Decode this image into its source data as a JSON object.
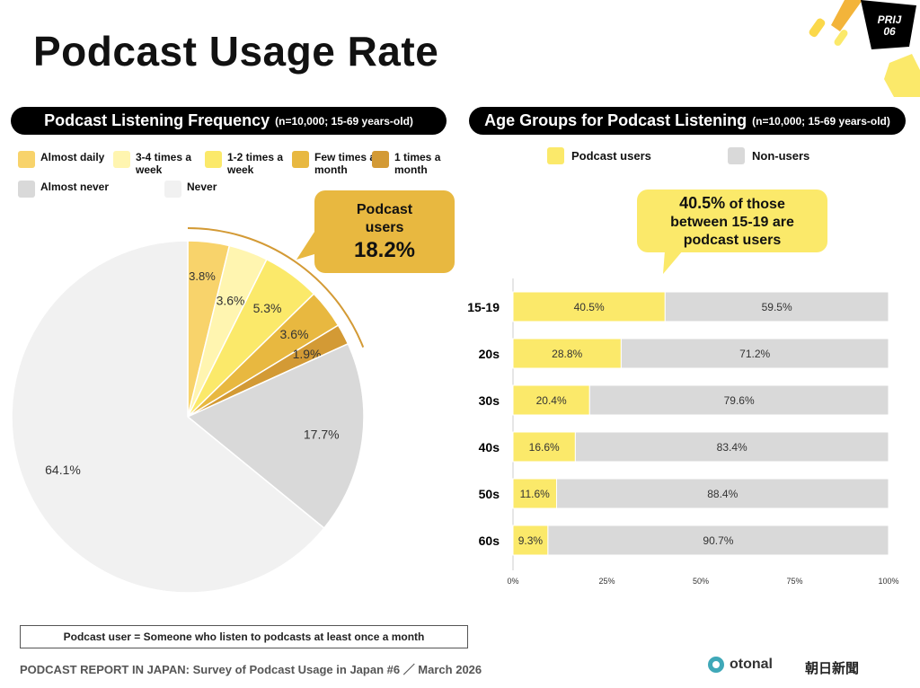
{
  "title": "Podcast Usage Rate",
  "badge": {
    "line1": "PRIJ",
    "line2": "06"
  },
  "left_panel": {
    "title": "Podcast Listening Frequency",
    "subtitle": "(n=10,000; 15-69 years-old)"
  },
  "right_panel": {
    "title": "Age Groups for Podcast Listening",
    "subtitle": "(n=10,000; 15-69 years-old)"
  },
  "callout_left": {
    "line1": "Podcast",
    "line2": "users",
    "value": "18.2%"
  },
  "callout_right": {
    "highlight": "40.5%",
    "line1": " of those",
    "line2": "between 15-19 are",
    "line3": "podcast users"
  },
  "definition": "Podcast user = Someone who listen to podcasts at least once a month",
  "footer": "PODCAST REPORT IN JAPAN: Survey of Podcast Usage in Japan #6 ／ March 2026",
  "logos": {
    "otonal": "otonal",
    "asahi": "朝日新聞"
  },
  "chart_data": [
    {
      "type": "pie",
      "start": "top",
      "direction": "clockwise",
      "categories": [
        "Almost daily",
        "3-4 times a week",
        "1-2 times a week",
        "Few times a month",
        "1 times a month",
        "Almost never",
        "Never"
      ],
      "values": [
        3.8,
        3.6,
        5.3,
        3.6,
        1.9,
        17.7,
        64.1
      ],
      "labels": [
        "3.8%",
        "3.6%",
        "5.3%",
        "3.6%",
        "1.9%",
        "17.7%",
        "64.1%"
      ],
      "colors": [
        "#F8D36B",
        "#FFF5B0",
        "#FBE96A",
        "#E8B840",
        "#D39A35",
        "#D9D9D9",
        "#F1F1F1"
      ]
    },
    {
      "type": "bar",
      "orientation": "horizontal",
      "stacked": true,
      "categories": [
        "15-19",
        "20s",
        "30s",
        "40s",
        "50s",
        "60s"
      ],
      "series": [
        {
          "name": "Podcast users",
          "values": [
            40.5,
            28.8,
            20.4,
            16.6,
            11.6,
            9.3
          ],
          "color": "#FBE96A"
        },
        {
          "name": "Non-users",
          "values": [
            59.5,
            71.2,
            79.6,
            83.4,
            88.4,
            90.7
          ],
          "color": "#D9D9D9"
        }
      ],
      "xlim": [
        0,
        100
      ],
      "xticks": [
        "0%",
        "25%",
        "50%",
        "75%",
        "100%"
      ],
      "legend": "top"
    }
  ]
}
